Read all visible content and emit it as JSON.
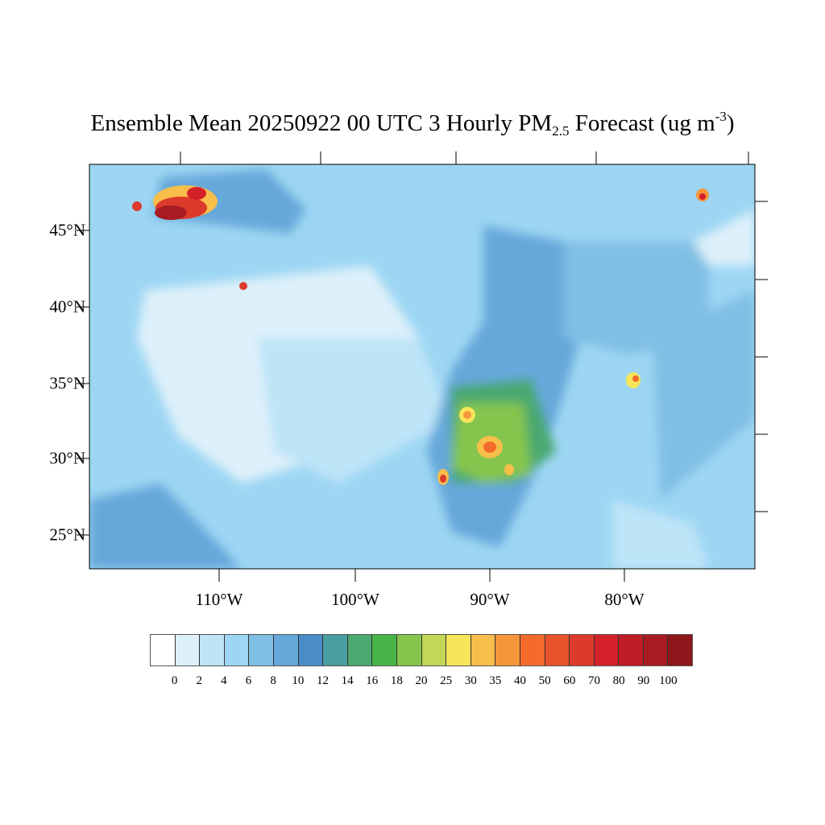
{
  "title": {
    "main": "Ensemble Mean 20250922 00 UTC 3 Hourly PM",
    "sub": "2.5",
    "tail": " Forecast (ug m",
    "sup": "-3",
    "close": ")"
  },
  "lat_labels": [
    "45°N",
    "40°N",
    "35°N",
    "30°N",
    "25°N"
  ],
  "lon_labels": [
    "110°W",
    "100°W",
    "90°W",
    "80°W"
  ],
  "colorbar": {
    "labels": [
      "0",
      "2",
      "4",
      "6",
      "8",
      "10",
      "12",
      "14",
      "16",
      "18",
      "20",
      "25",
      "30",
      "35",
      "40",
      "50",
      "60",
      "70",
      "80",
      "90",
      "100"
    ],
    "colors": [
      "#ffffff",
      "#ddf0fa",
      "#bde4f7",
      "#9dd6f3",
      "#80bfe4",
      "#66a8da",
      "#4a8cc8",
      "#4a9da0",
      "#4aa870",
      "#48b548",
      "#85c54e",
      "#c3d757",
      "#f7e55a",
      "#f8be4a",
      "#f6963a",
      "#f46b2b",
      "#e8532b",
      "#dc3a2b",
      "#d42129",
      "#bf1d26",
      "#a91b22",
      "#8e171b"
    ]
  }
}
